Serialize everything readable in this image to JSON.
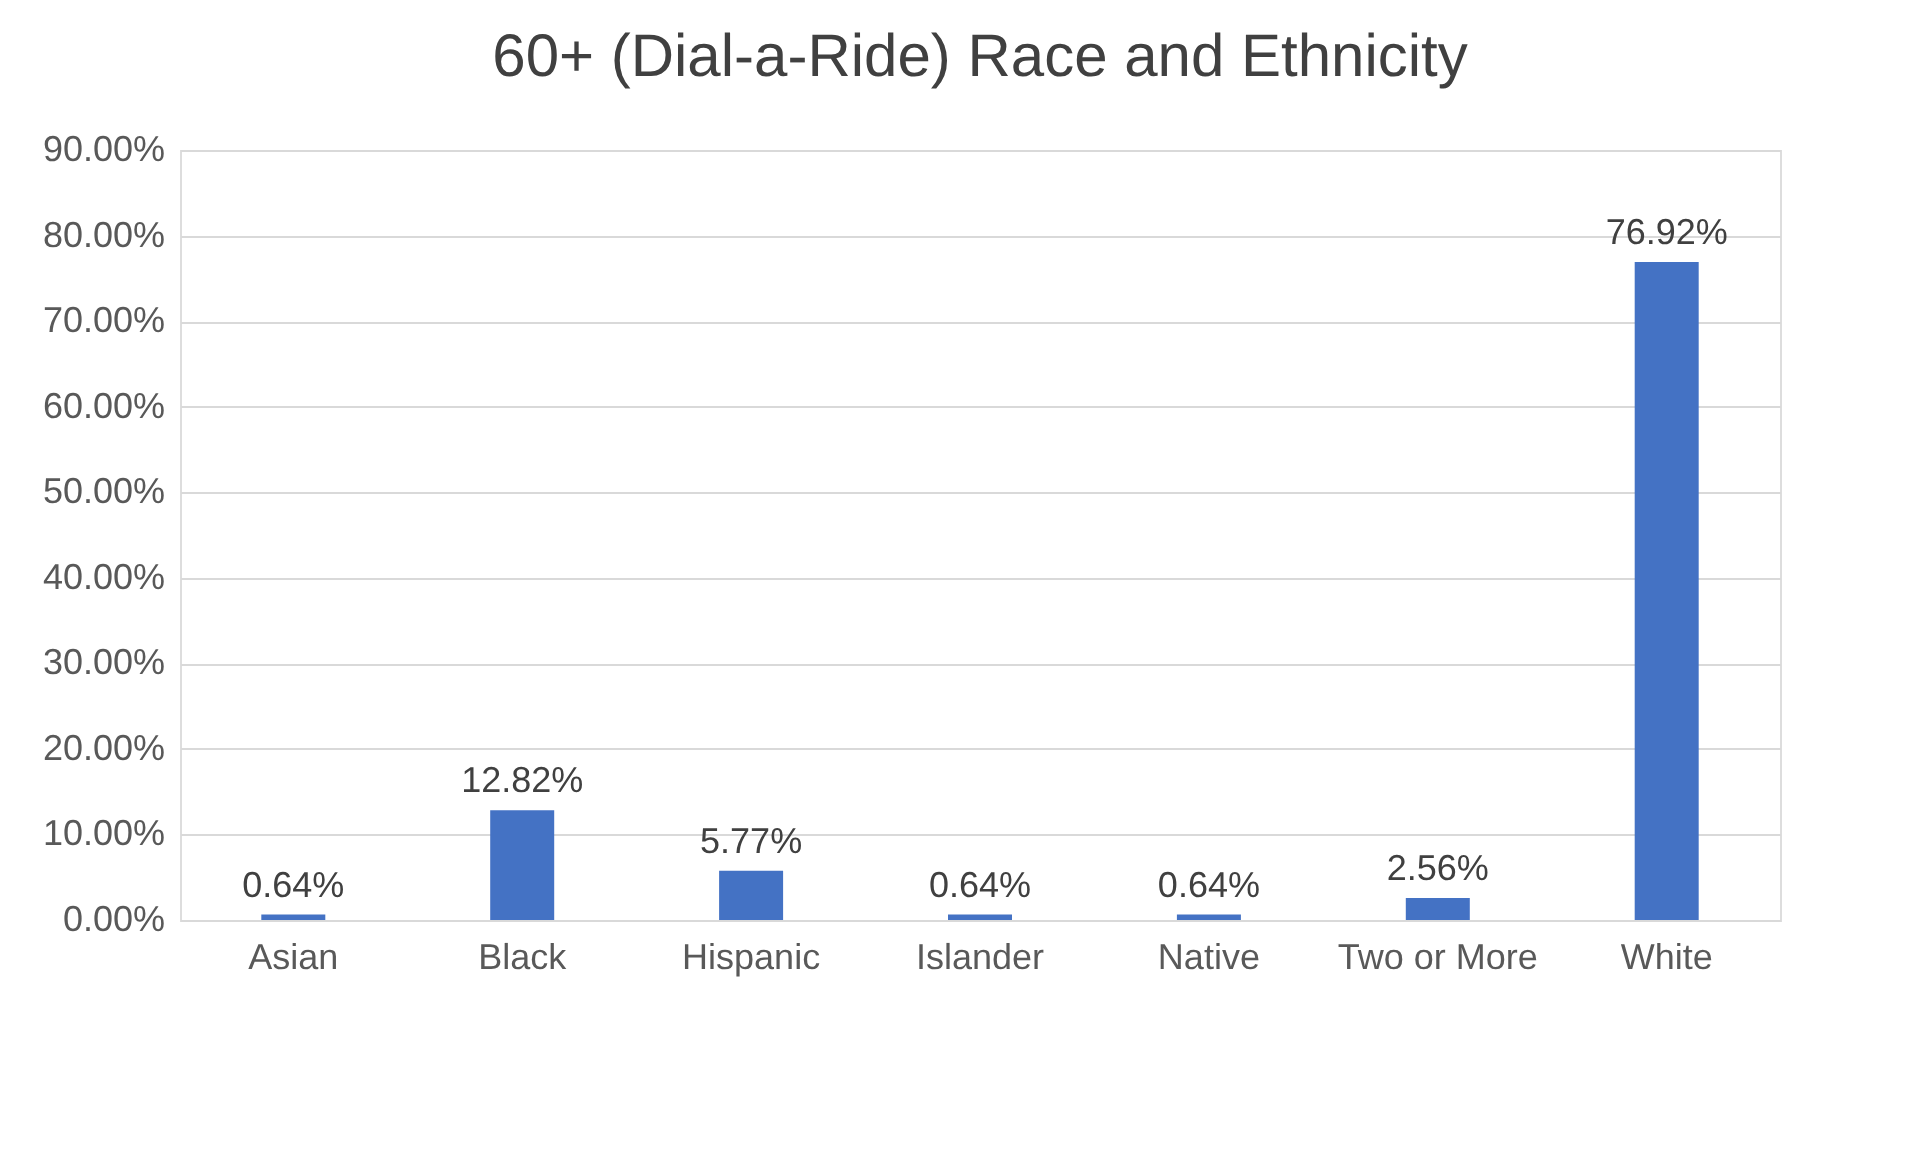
{
  "chart_data": {
    "type": "bar",
    "title": "60+ (Dial-a-Ride) Race and Ethnicity",
    "categories": [
      "Asian",
      "Black",
      "Hispanic",
      "Islander",
      "Native",
      "Two or More",
      "White"
    ],
    "values": [
      0.64,
      12.82,
      5.77,
      0.64,
      0.64,
      2.56,
      76.92
    ],
    "value_labels": [
      "0.64%",
      "12.82%",
      "5.77%",
      "0.64%",
      "0.64%",
      "2.56%",
      "76.92%"
    ],
    "color": "#4472c4",
    "ylim": [
      0,
      90
    ],
    "yticks": [
      {
        "value": 0,
        "label": "0.00%"
      },
      {
        "value": 10,
        "label": "10.00%"
      },
      {
        "value": 20,
        "label": "20.00%"
      },
      {
        "value": 30,
        "label": "30.00%"
      },
      {
        "value": 40,
        "label": "40.00%"
      },
      {
        "value": 50,
        "label": "50.00%"
      },
      {
        "value": 60,
        "label": "60.00%"
      },
      {
        "value": 70,
        "label": "70.00%"
      },
      {
        "value": 80,
        "label": "80.00%"
      },
      {
        "value": 90,
        "label": "90.00%"
      }
    ],
    "grid": "y"
  }
}
